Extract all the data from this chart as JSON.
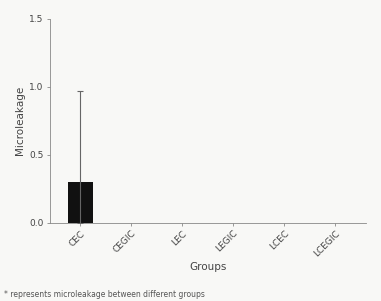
{
  "categories": [
    "CEC",
    "CEGIC",
    "LEC",
    "LEGIC",
    "LCEC",
    "LCEGIC"
  ],
  "bar_values": [
    0.3,
    0.0,
    0.0,
    0.0,
    0.0,
    0.0
  ],
  "error_upper": [
    0.97,
    0.0,
    0.0,
    0.0,
    0.0,
    0.0
  ],
  "error_lower": [
    0.0,
    0.0,
    0.0,
    0.0,
    0.0,
    0.0
  ],
  "bar_color": "#111111",
  "title": "",
  "xlabel": "Groups",
  "ylabel": "Microleakage",
  "ylim": [
    0.0,
    1.5
  ],
  "yticks": [
    0.0,
    0.5,
    1.0,
    1.5
  ],
  "footnote": "* represents microleakage between different groups",
  "bar_width": 0.5,
  "background_color": "#f8f8f6",
  "axis_color": "#888888",
  "label_fontsize": 7.5,
  "tick_fontsize": 6.5,
  "footnote_fontsize": 5.5
}
